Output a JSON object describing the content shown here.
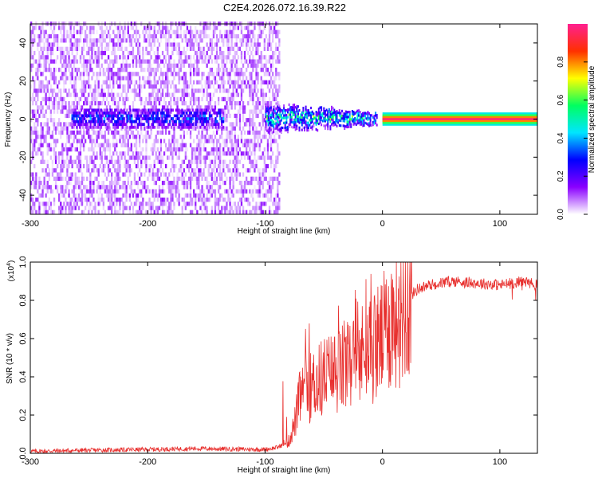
{
  "title": "C2E4.2026.072.16.39.R22",
  "colors": {
    "snr_line": "#e8302e",
    "axis": "#000000",
    "colormap": [
      "#ffffff",
      "#8a00ff",
      "#0000ff",
      "#00e6ff",
      "#00ff60",
      "#ffff00",
      "#ff3000",
      "#ff2090"
    ]
  },
  "chart_data": [
    {
      "type": "heatmap",
      "title": "C2E4.2026.072.16.39.R22",
      "xlabel": "Height of straight line (km)",
      "ylabel": "Frequency (Hz)",
      "xlim": [
        -300,
        132
      ],
      "ylim": [
        -50,
        50
      ],
      "x_ticks": [
        -300,
        -200,
        -100,
        0,
        100
      ],
      "y_ticks": [
        -40,
        -20,
        0,
        20,
        40
      ],
      "colorbar": {
        "label": "Normalized spectral amplitude",
        "range": [
          0.0,
          1.0
        ],
        "ticks": [
          "0.0",
          "0.2",
          "0.4",
          "0.6",
          "0.8"
        ]
      },
      "features": [
        {
          "name": "noise region",
          "x_range": [
            -300,
            -88
          ],
          "freq_range": [
            -50,
            50
          ],
          "amplitude": 0.1
        },
        {
          "name": "weak band",
          "x_range": [
            -265,
            -135
          ],
          "freq_center": 0,
          "amplitude": 0.3
        },
        {
          "name": "transition band",
          "x_range": [
            -100,
            -5
          ],
          "freq_center": 0,
          "amplitude": 0.55
        },
        {
          "name": "strong carrier",
          "x_range": [
            0,
            132
          ],
          "freq_center": 0,
          "amplitude": 0.98
        }
      ]
    },
    {
      "type": "line",
      "xlabel": "Height of straight line (km)",
      "ylabel": "SNR (10 * v/v)",
      "scale_label": "(x10",
      "scale_exp": "4",
      "scale_close": ")",
      "xlim": [
        -300,
        132
      ],
      "ylim": [
        0.0,
        1.0
      ],
      "x_ticks": [
        -300,
        -200,
        -100,
        0,
        100
      ],
      "y_ticks": [
        "0.0",
        "0.2",
        "0.4",
        "0.6",
        "0.8",
        "1.0"
      ],
      "series": [
        {
          "name": "SNR",
          "x": [
            -300,
            -260,
            -200,
            -160,
            -100,
            -90,
            -80,
            -75,
            -70,
            -60,
            -50,
            -40,
            -30,
            -20,
            -10,
            0,
            10,
            20,
            30,
            40,
            60,
            80,
            100,
            120,
            132
          ],
          "y": [
            0.01,
            0.015,
            0.02,
            0.025,
            0.02,
            0.03,
            0.06,
            0.15,
            0.3,
            0.35,
            0.4,
            0.42,
            0.45,
            0.5,
            0.55,
            0.6,
            0.72,
            0.8,
            0.86,
            0.88,
            0.9,
            0.89,
            0.88,
            0.9,
            0.88
          ]
        }
      ]
    }
  ]
}
